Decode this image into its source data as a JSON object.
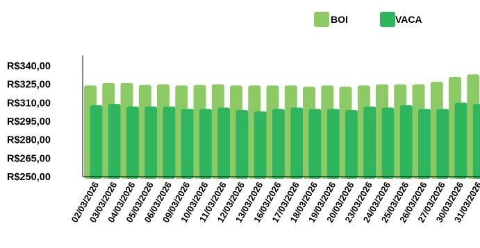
{
  "chart_data": {
    "type": "bar",
    "title": "",
    "xlabel": "",
    "ylabel": "",
    "ylim": [
      250,
      340
    ],
    "yticks": [
      "R$340,00",
      "R$325,00",
      "R$310,00",
      "R$295,00",
      "R$280,00",
      "R$265,00",
      "R$250,00"
    ],
    "ytick_values": [
      340,
      325,
      310,
      295,
      280,
      265,
      250
    ],
    "grid": false,
    "legend_position": "top-right",
    "categories": [
      "02/03/2026",
      "03/03/2026",
      "04/03/2026",
      "05/03/2026",
      "06/03/2026",
      "09/03/2026",
      "10/03/2026",
      "11/03/2026",
      "12/03/2026",
      "13/03/2026",
      "16/03/2026",
      "17/03/2026",
      "18/03/2026",
      "19/03/2026",
      "20/03/2026",
      "23/03/2026",
      "24/03/2026",
      "25/03/2026",
      "26/03/2026",
      "27/03/2026",
      "30/03/2026",
      "31/03/2026"
    ],
    "series": [
      {
        "name": "BOI",
        "color": "#8dc965",
        "values": [
          324,
          326,
          326,
          324.5,
          325,
          324,
          324.5,
          325,
          324,
          324,
          324,
          324,
          323,
          324,
          323,
          324,
          325,
          325,
          325,
          327,
          331,
          333
        ]
      },
      {
        "name": "VACA",
        "color": "#2fb55e",
        "values": [
          308,
          309,
          307,
          307,
          307,
          305,
          305,
          306,
          304,
          303,
          305,
          306,
          305,
          305,
          304,
          307,
          306,
          308,
          305,
          305,
          310,
          309
        ]
      }
    ]
  }
}
